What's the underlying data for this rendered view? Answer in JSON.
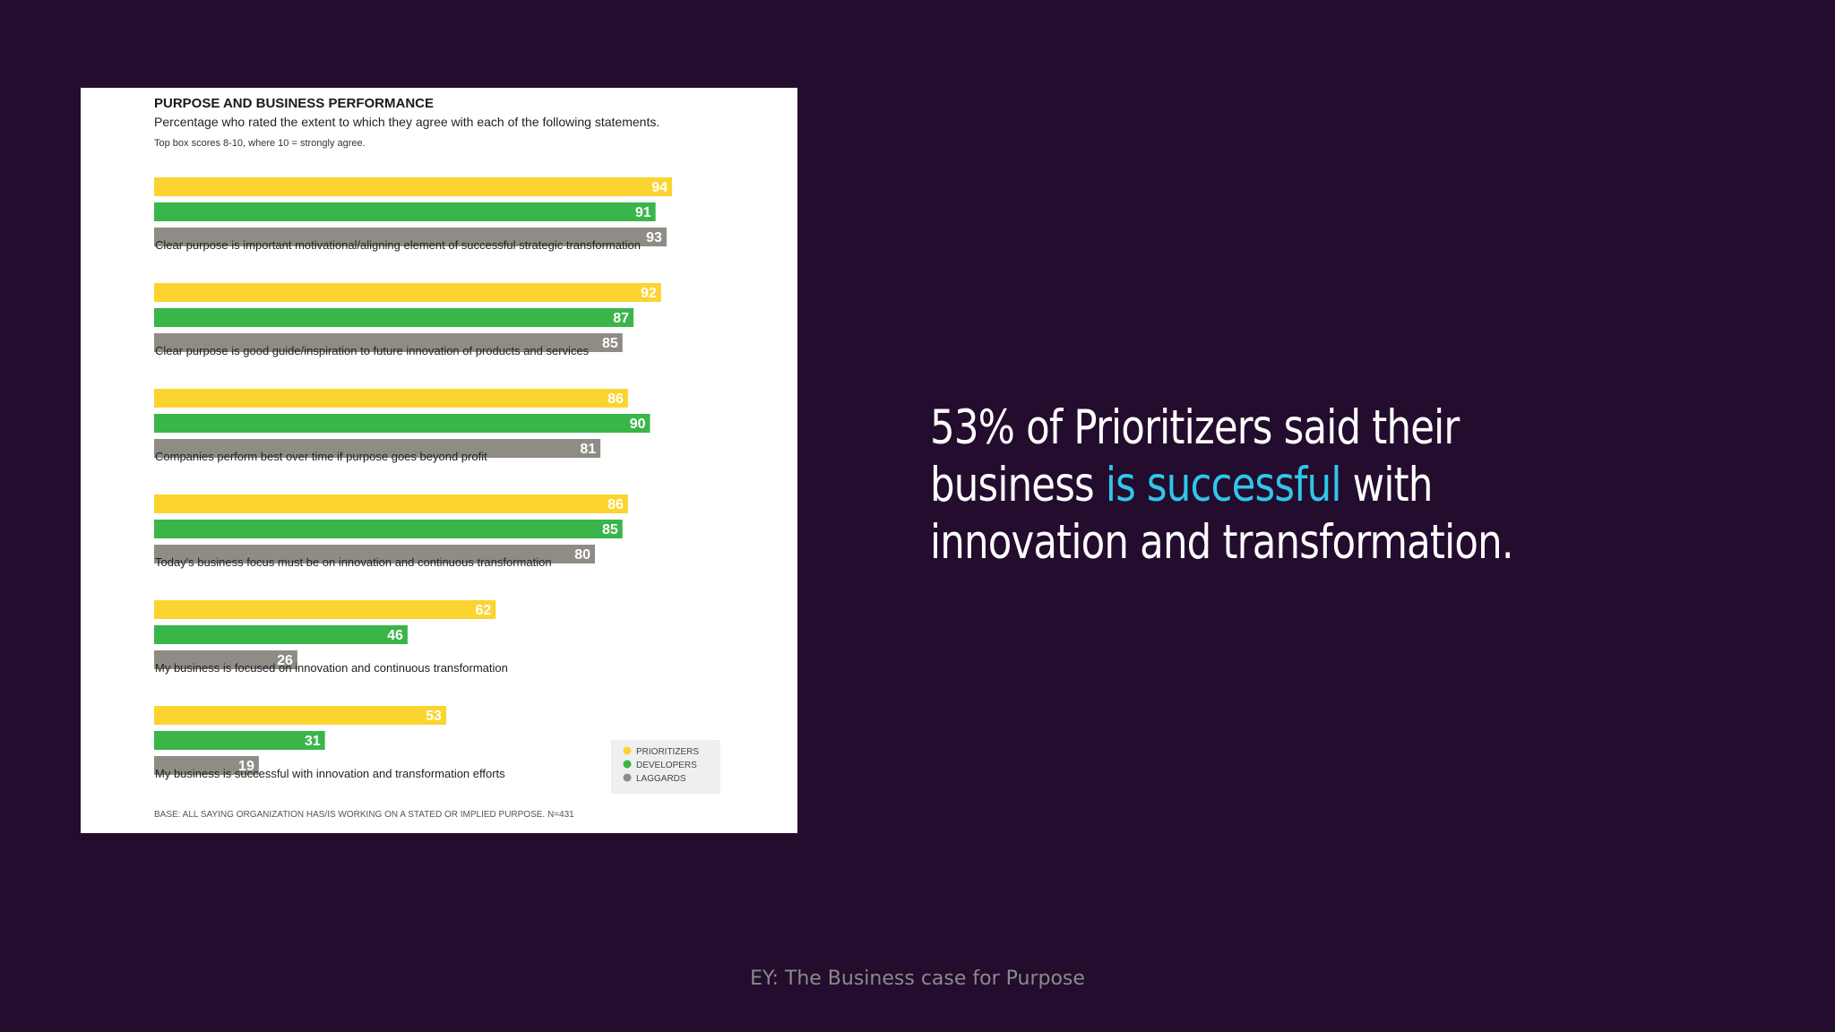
{
  "slide": {
    "headline_part1": "53% of Prioritizers said their business ",
    "headline_highlight": "is successful",
    "headline_part2": " with innovation and transformation.",
    "source": "EY: The Business case for Purpose",
    "colors": {
      "background": "#230c2d",
      "highlight": "#2fc7ea",
      "text": "#ffffff"
    }
  },
  "chart_data": {
    "type": "bar",
    "orientation": "horizontal",
    "title": "PURPOSE AND BUSINESS PERFORMANCE",
    "subtitle": "Percentage who rated the extent to which they agree with each of the following statements.",
    "note": "Top box scores 8-10, where 10 = strongly agree.",
    "base": "BASE: ALL SAYING ORGANIZATION HAS/IS WORKING ON A STATED OR IMPLIED PURPOSE. N=431",
    "categories": [
      "Clear purpose is important motivational/aligning element of successful strategic transformation",
      "Clear purpose is good guide/inspiration to future innovation of products and services",
      "Companies perform best over time if purpose goes beyond profit",
      "Today's business focus must be on innovation and continuous transformation",
      "My business is focused on innovation and continuous transformation",
      "My business is successful with innovation and transformation efforts"
    ],
    "series": [
      {
        "name": "PRIORITIZERS",
        "color": "#fcd430",
        "values": [
          94,
          92,
          86,
          86,
          62,
          53
        ]
      },
      {
        "name": "DEVELOPERS",
        "color": "#3ab54a",
        "values": [
          91,
          87,
          90,
          85,
          46,
          31
        ]
      },
      {
        "name": "LAGGARDS",
        "color": "#8e8c84",
        "values": [
          93,
          85,
          81,
          80,
          26,
          19
        ]
      }
    ],
    "xlim": [
      0,
      100
    ],
    "legend_position": "bottom-right",
    "grid": false
  }
}
